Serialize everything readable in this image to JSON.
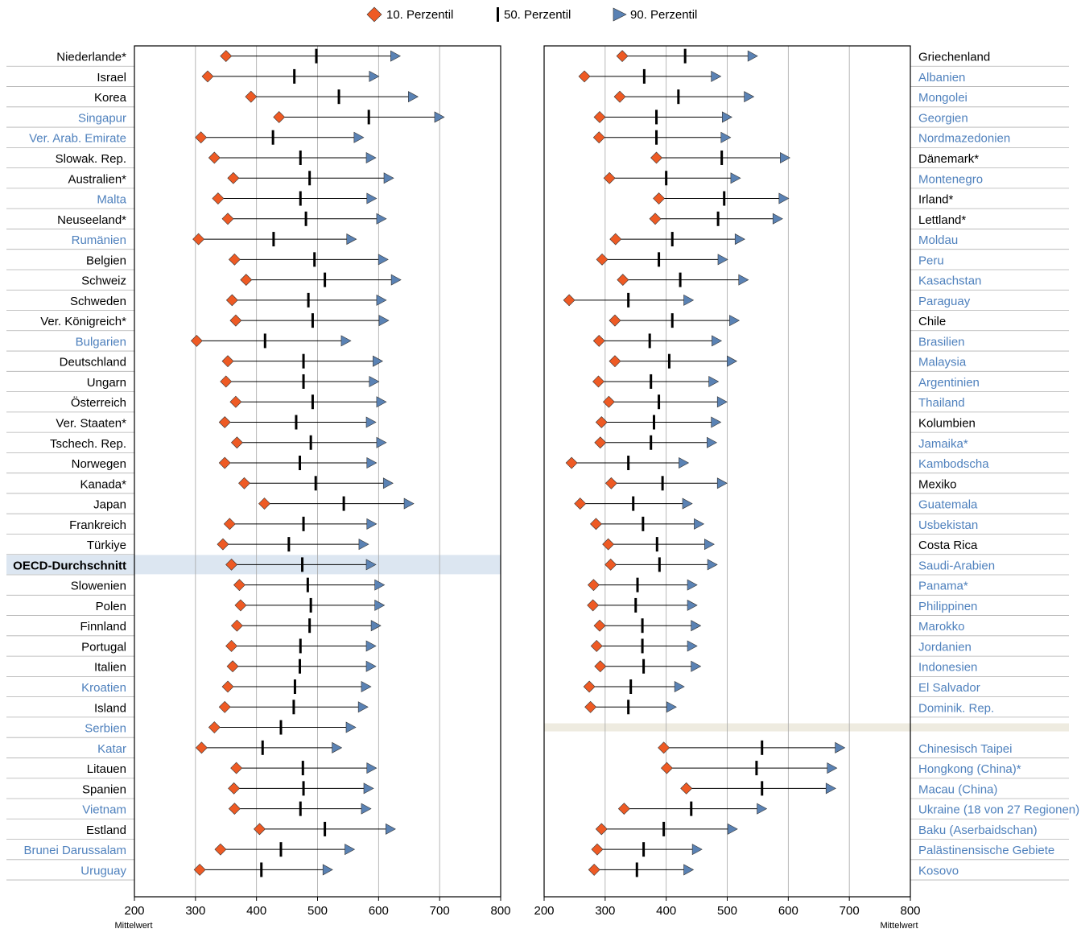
{
  "colors": {
    "p10": "#ee5a24",
    "p50": "#000000",
    "p90": "#5a82b4",
    "label_oecd": "#000000",
    "label_partner": "#4f81bd",
    "highlight": "#dce6f1",
    "separator": "#eeebe0",
    "grid": "#a6a6a6"
  },
  "legend": {
    "p10": "10. Perzentil",
    "p50": "50. Perzentil",
    "p90": "90. Perzentil"
  },
  "chart_data": [
    {
      "type": "range-dot",
      "xlabel": "Mittelwert",
      "xlim": [
        200,
        800
      ],
      "xticks": [
        200,
        300,
        400,
        500,
        600,
        700,
        800
      ],
      "grid": true,
      "legend_placement": "top",
      "rows": [
        {
          "name": "Niederlande*",
          "group": "oecd",
          "p10": 350,
          "p50": 498,
          "p90": 633
        },
        {
          "name": "Israel",
          "group": "oecd",
          "p10": 320,
          "p50": 462,
          "p90": 598
        },
        {
          "name": "Korea",
          "group": "oecd",
          "p10": 391,
          "p50": 535,
          "p90": 662
        },
        {
          "name": "Singapur",
          "group": "partner",
          "p10": 437,
          "p50": 584,
          "p90": 705
        },
        {
          "name": "Ver. Arab. Emirate",
          "group": "partner",
          "p10": 309,
          "p50": 427,
          "p90": 573
        },
        {
          "name": "Slowak. Rep.",
          "group": "oecd",
          "p10": 331,
          "p50": 472,
          "p90": 593
        },
        {
          "name": "Australien*",
          "group": "oecd",
          "p10": 362,
          "p50": 487,
          "p90": 622
        },
        {
          "name": "Malta",
          "group": "partner",
          "p10": 337,
          "p50": 472,
          "p90": 594
        },
        {
          "name": "Neuseeland*",
          "group": "oecd",
          "p10": 353,
          "p50": 481,
          "p90": 610
        },
        {
          "name": "Rumänien",
          "group": "partner",
          "p10": 305,
          "p50": 428,
          "p90": 561
        },
        {
          "name": "Belgien",
          "group": "oecd",
          "p10": 364,
          "p50": 495,
          "p90": 613
        },
        {
          "name": "Schweiz",
          "group": "oecd",
          "p10": 383,
          "p50": 512,
          "p90": 634
        },
        {
          "name": "Schweden",
          "group": "oecd",
          "p10": 360,
          "p50": 485,
          "p90": 610
        },
        {
          "name": "Ver. Königreich*",
          "group": "oecd",
          "p10": 366,
          "p50": 492,
          "p90": 614
        },
        {
          "name": "Bulgarien",
          "group": "partner",
          "p10": 302,
          "p50": 414,
          "p90": 552
        },
        {
          "name": "Deutschland",
          "group": "oecd",
          "p10": 353,
          "p50": 477,
          "p90": 604
        },
        {
          "name": "Ungarn",
          "group": "oecd",
          "p10": 350,
          "p50": 477,
          "p90": 598
        },
        {
          "name": "Österreich",
          "group": "oecd",
          "p10": 366,
          "p50": 492,
          "p90": 610
        },
        {
          "name": "Ver. Staaten*",
          "group": "oecd",
          "p10": 348,
          "p50": 465,
          "p90": 593
        },
        {
          "name": "Tschech. Rep.",
          "group": "oecd",
          "p10": 368,
          "p50": 489,
          "p90": 610
        },
        {
          "name": "Norwegen",
          "group": "oecd",
          "p10": 348,
          "p50": 471,
          "p90": 594
        },
        {
          "name": "Kanada*",
          "group": "oecd",
          "p10": 380,
          "p50": 497,
          "p90": 621
        },
        {
          "name": "Japan",
          "group": "oecd",
          "p10": 413,
          "p50": 543,
          "p90": 655
        },
        {
          "name": "Frankreich",
          "group": "oecd",
          "p10": 356,
          "p50": 477,
          "p90": 594
        },
        {
          "name": "Türkiye",
          "group": "oecd",
          "p10": 345,
          "p50": 453,
          "p90": 581
        },
        {
          "name": "OECD-Durchschnitt",
          "group": "average",
          "p10": 359,
          "p50": 475,
          "p90": 593
        },
        {
          "name": "Slowenien",
          "group": "oecd",
          "p10": 372,
          "p50": 484,
          "p90": 607
        },
        {
          "name": "Polen",
          "group": "oecd",
          "p10": 374,
          "p50": 489,
          "p90": 607
        },
        {
          "name": "Finnland",
          "group": "oecd",
          "p10": 368,
          "p50": 487,
          "p90": 601
        },
        {
          "name": "Portugal",
          "group": "oecd",
          "p10": 359,
          "p50": 472,
          "p90": 593
        },
        {
          "name": "Italien",
          "group": "oecd",
          "p10": 361,
          "p50": 471,
          "p90": 593
        },
        {
          "name": "Kroatien",
          "group": "partner",
          "p10": 353,
          "p50": 463,
          "p90": 585
        },
        {
          "name": "Island",
          "group": "oecd",
          "p10": 348,
          "p50": 461,
          "p90": 580
        },
        {
          "name": "Serbien",
          "group": "partner",
          "p10": 331,
          "p50": 440,
          "p90": 560
        },
        {
          "name": "Katar",
          "group": "partner",
          "p10": 310,
          "p50": 410,
          "p90": 537
        },
        {
          "name": "Litauen",
          "group": "oecd",
          "p10": 367,
          "p50": 476,
          "p90": 594
        },
        {
          "name": "Spanien",
          "group": "oecd",
          "p10": 363,
          "p50": 477,
          "p90": 589
        },
        {
          "name": "Vietnam",
          "group": "partner",
          "p10": 364,
          "p50": 472,
          "p90": 585
        },
        {
          "name": "Estland",
          "group": "oecd",
          "p10": 405,
          "p50": 512,
          "p90": 625
        },
        {
          "name": "Brunei Darussalam",
          "group": "partner",
          "p10": 341,
          "p50": 440,
          "p90": 558
        },
        {
          "name": "Uruguay",
          "group": "partner",
          "p10": 307,
          "p50": 408,
          "p90": 522
        }
      ]
    },
    {
      "type": "range-dot",
      "xlabel": "Mittelwert",
      "xlim": [
        200,
        800
      ],
      "xticks": [
        200,
        300,
        400,
        500,
        600,
        700,
        800
      ],
      "grid": true,
      "rows": [
        {
          "name": "Griechenland",
          "group": "oecd",
          "p10": 328,
          "p50": 431,
          "p90": 547
        },
        {
          "name": "Albanien",
          "group": "partner",
          "p10": 266,
          "p50": 364,
          "p90": 487
        },
        {
          "name": "Mongolei",
          "group": "partner",
          "p10": 324,
          "p50": 420,
          "p90": 541
        },
        {
          "name": "Georgien",
          "group": "partner",
          "p10": 291,
          "p50": 384,
          "p90": 505
        },
        {
          "name": "Nordmazedonien",
          "group": "partner",
          "p10": 290,
          "p50": 384,
          "p90": 503
        },
        {
          "name": "Dänemark*",
          "group": "oecd",
          "p10": 384,
          "p50": 491,
          "p90": 600
        },
        {
          "name": "Montenegro",
          "group": "partner",
          "p10": 307,
          "p50": 400,
          "p90": 519
        },
        {
          "name": "Irland*",
          "group": "oecd",
          "p10": 388,
          "p50": 495,
          "p90": 598
        },
        {
          "name": "Lettland*",
          "group": "oecd",
          "p10": 382,
          "p50": 485,
          "p90": 588
        },
        {
          "name": "Moldau",
          "group": "partner",
          "p10": 317,
          "p50": 410,
          "p90": 526
        },
        {
          "name": "Peru",
          "group": "partner",
          "p10": 295,
          "p50": 388,
          "p90": 498
        },
        {
          "name": "Kasachstan",
          "group": "partner",
          "p10": 329,
          "p50": 423,
          "p90": 532
        },
        {
          "name": "Paraguay",
          "group": "partner",
          "p10": 241,
          "p50": 338,
          "p90": 442
        },
        {
          "name": "Chile",
          "group": "oecd",
          "p10": 316,
          "p50": 410,
          "p90": 517
        },
        {
          "name": "Brasilien",
          "group": "partner",
          "p10": 290,
          "p50": 373,
          "p90": 488
        },
        {
          "name": "Malaysia",
          "group": "partner",
          "p10": 316,
          "p50": 405,
          "p90": 513
        },
        {
          "name": "Argentinien",
          "group": "partner",
          "p10": 289,
          "p50": 375,
          "p90": 483
        },
        {
          "name": "Thailand",
          "group": "partner",
          "p10": 306,
          "p50": 388,
          "p90": 497
        },
        {
          "name": "Kolumbien",
          "group": "oecd",
          "p10": 294,
          "p50": 380,
          "p90": 487
        },
        {
          "name": "Jamaika*",
          "group": "partner",
          "p10": 292,
          "p50": 375,
          "p90": 480
        },
        {
          "name": "Kambodscha",
          "group": "partner",
          "p10": 245,
          "p50": 338,
          "p90": 434
        },
        {
          "name": "Mexiko",
          "group": "oecd",
          "p10": 310,
          "p50": 394,
          "p90": 497
        },
        {
          "name": "Guatemala",
          "group": "partner",
          "p10": 259,
          "p50": 346,
          "p90": 440
        },
        {
          "name": "Usbekistan",
          "group": "partner",
          "p10": 285,
          "p50": 362,
          "p90": 459
        },
        {
          "name": "Costa Rica",
          "group": "oecd",
          "p10": 305,
          "p50": 385,
          "p90": 476
        },
        {
          "name": "Saudi-Arabien",
          "group": "partner",
          "p10": 309,
          "p50": 389,
          "p90": 481
        },
        {
          "name": "Panama*",
          "group": "partner",
          "p10": 281,
          "p50": 353,
          "p90": 448
        },
        {
          "name": "Philippinen",
          "group": "partner",
          "p10": 280,
          "p50": 350,
          "p90": 448
        },
        {
          "name": "Marokko",
          "group": "partner",
          "p10": 291,
          "p50": 361,
          "p90": 454
        },
        {
          "name": "Jordanien",
          "group": "partner",
          "p10": 286,
          "p50": 361,
          "p90": 448
        },
        {
          "name": "Indonesien",
          "group": "partner",
          "p10": 292,
          "p50": 363,
          "p90": 454
        },
        {
          "name": "El Salvador",
          "group": "partner",
          "p10": 274,
          "p50": 342,
          "p90": 427
        },
        {
          "name": "Dominik. Rep.",
          "group": "partner",
          "p10": 276,
          "p50": 338,
          "p90": 414
        },
        {
          "name": "",
          "group": "separator"
        },
        {
          "name": "Chinesisch Taipei",
          "group": "partner",
          "p10": 396,
          "p50": 557,
          "p90": 690
        },
        {
          "name": "Hongkong (China)*",
          "group": "partner",
          "p10": 401,
          "p50": 548,
          "p90": 677
        },
        {
          "name": "Macau (China)",
          "group": "partner",
          "p10": 433,
          "p50": 557,
          "p90": 675
        },
        {
          "name": "Ukraine (18 von 27 Regionen)",
          "group": "partner",
          "p10": 331,
          "p50": 441,
          "p90": 562
        },
        {
          "name": "Baku (Aserbaidschan)",
          "group": "partner",
          "p10": 294,
          "p50": 396,
          "p90": 514
        },
        {
          "name": "Palästinensische Gebiete",
          "group": "partner",
          "p10": 287,
          "p50": 363,
          "p90": 456
        },
        {
          "name": "Kosovo",
          "group": "partner",
          "p10": 282,
          "p50": 352,
          "p90": 442
        }
      ]
    }
  ]
}
